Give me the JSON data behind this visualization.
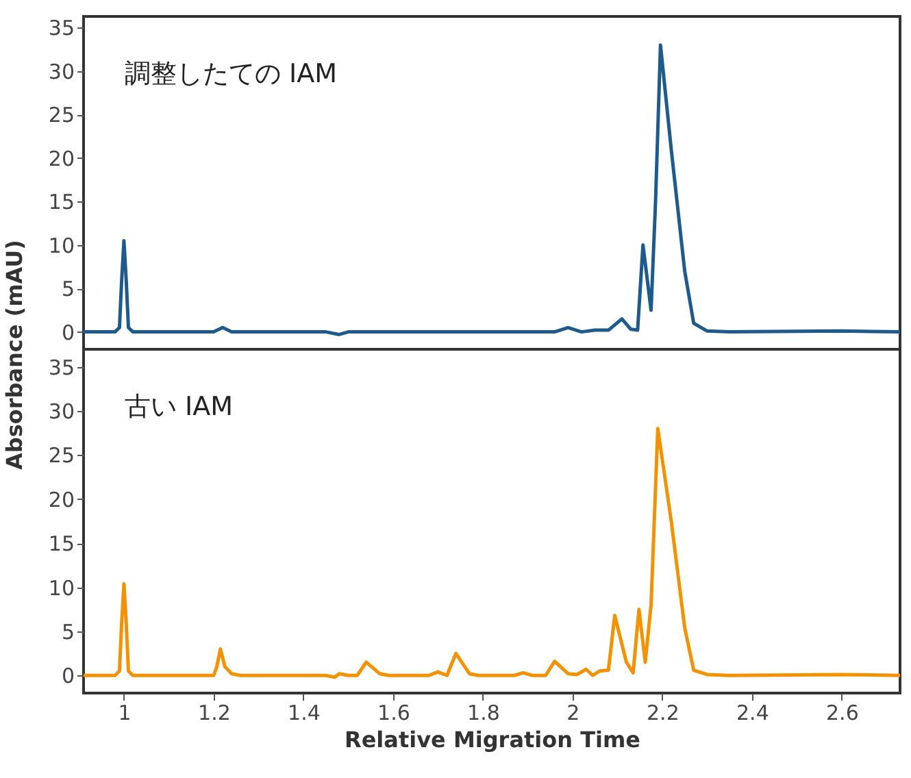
{
  "chart_data": [
    {
      "type": "line",
      "annotations": [
        "調整したての IAM"
      ],
      "ylabel": "Absorbance (mAU)",
      "xlim": [
        0.91,
        2.73
      ],
      "ylim": [
        -2,
        36.3
      ],
      "yticks": [
        0,
        5,
        10,
        15,
        20,
        25,
        30,
        35
      ],
      "tick_labels": "y",
      "grid": false,
      "marker": "none",
      "line_style": "solid",
      "series": [
        {
          "color": "#1f5a8c",
          "x": [
            0.91,
            0.98,
            0.99,
            0.995,
            1.0,
            1.005,
            1.01,
            1.02,
            1.2,
            1.22,
            1.24,
            1.45,
            1.48,
            1.5,
            1.96,
            1.99,
            2.02,
            2.05,
            2.08,
            2.11,
            2.13,
            2.145,
            2.157,
            2.175,
            2.185,
            2.196,
            2.22,
            2.25,
            2.27,
            2.3,
            2.35,
            2.6,
            2.73
          ],
          "values": [
            0,
            0,
            0.5,
            6,
            10.5,
            6,
            0.5,
            0,
            0,
            0.5,
            0,
            0,
            -0.3,
            0,
            0,
            0.5,
            0,
            0.2,
            0.2,
            1.5,
            0.3,
            0.2,
            10,
            2.5,
            15,
            33,
            21,
            7,
            1,
            0.1,
            0,
            0.1,
            0
          ]
        }
      ]
    },
    {
      "type": "line",
      "annotations": [
        "古い IAM"
      ],
      "xlabel": "Relative Migration Time",
      "xlim": [
        0.91,
        2.73
      ],
      "xticks": [
        1,
        1.2,
        1.4,
        1.6,
        1.8,
        2,
        2.2,
        2.4,
        2.6
      ],
      "ylim": [
        -2,
        37
      ],
      "yticks": [
        0,
        5,
        10,
        15,
        20,
        25,
        30,
        35
      ],
      "grid": false,
      "marker": "none",
      "line_style": "solid",
      "series": [
        {
          "color": "#f39200",
          "x": [
            0.91,
            0.98,
            0.99,
            0.995,
            1.0,
            1.005,
            1.01,
            1.02,
            1.2,
            1.207,
            1.215,
            1.225,
            1.24,
            1.26,
            1.45,
            1.47,
            1.48,
            1.5,
            1.52,
            1.54,
            1.57,
            1.59,
            1.68,
            1.7,
            1.72,
            1.74,
            1.77,
            1.79,
            1.87,
            1.89,
            1.91,
            1.94,
            1.96,
            1.99,
            2.01,
            2.03,
            2.045,
            2.06,
            2.08,
            2.094,
            2.12,
            2.135,
            2.148,
            2.162,
            2.175,
            2.19,
            2.22,
            2.25,
            2.27,
            2.3,
            2.35,
            2.6,
            2.73
          ],
          "values": [
            0,
            0,
            0.5,
            6,
            10.4,
            6,
            0.5,
            0,
            0,
            1,
            3,
            1,
            0.2,
            0,
            0,
            -0.2,
            0.2,
            0,
            0,
            1.5,
            0.2,
            0,
            0,
            0.4,
            0,
            2.5,
            0.2,
            0,
            0,
            0.3,
            0,
            0,
            1.6,
            0.2,
            0.1,
            0.7,
            0,
            0.5,
            0.6,
            6.8,
            1.5,
            0.3,
            7.5,
            1.5,
            8,
            28,
            17.5,
            5.4,
            0.6,
            0.1,
            0,
            0.1,
            0
          ]
        }
      ]
    }
  ]
}
